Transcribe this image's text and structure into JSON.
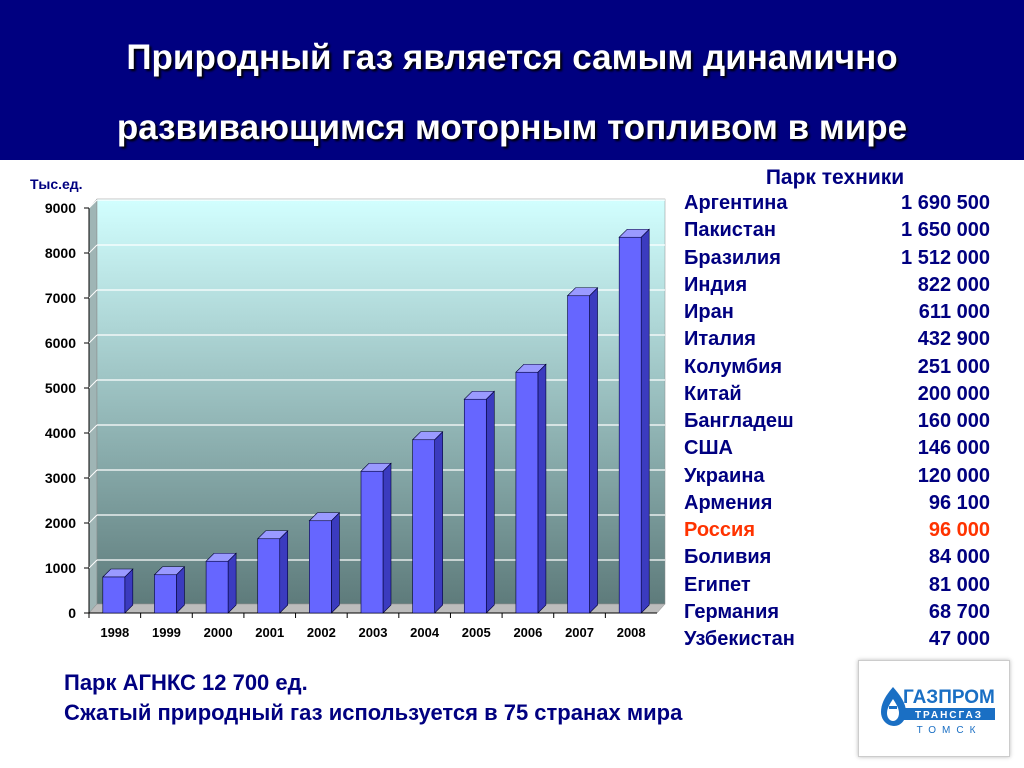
{
  "slide": {
    "title_line1": "Природный газ является самым динамично",
    "title_line2": "развивающимся моторным топливом в мире"
  },
  "chart_data": {
    "type": "bar",
    "ylabel": "Тыс.ед.",
    "categories": [
      "1998",
      "1999",
      "2000",
      "2001",
      "2002",
      "2003",
      "2004",
      "2005",
      "2006",
      "2007",
      "2008"
    ],
    "values": [
      800,
      850,
      1150,
      1650,
      2050,
      3150,
      3850,
      4750,
      5350,
      7050,
      8350
    ],
    "ylim": [
      0,
      9000
    ],
    "yticks": [
      "0",
      "1000",
      "2000",
      "3000",
      "4000",
      "5000",
      "6000",
      "7000",
      "8000",
      "9000"
    ],
    "grid": true,
    "colors": {
      "bar": "#6666ff",
      "bar_side": "#3b3bbf",
      "bar_top": "#9a9aff"
    }
  },
  "fleet": {
    "title": "Парк техники",
    "rows": [
      {
        "country": "Аргентина",
        "count": "1 690 500"
      },
      {
        "country": "Пакистан",
        "count": "1 650 000"
      },
      {
        "country": "Бразилия",
        "count": "1 512 000"
      },
      {
        "country": "Индия",
        "count": "822 000"
      },
      {
        "country": "Иран",
        "count": "611 000"
      },
      {
        "country": "Италия",
        "count": "432 900"
      },
      {
        "country": "Колумбия",
        "count": "251 000"
      },
      {
        "country": "Китай",
        "count": "200 000"
      },
      {
        "country": "Бангладеш",
        "count": "160 000"
      },
      {
        "country": "США",
        "count": "146 000"
      },
      {
        "country": "Украина",
        "count": "120 000"
      },
      {
        "country": "Армения",
        "count": "96 100"
      },
      {
        "country": "Россия",
        "count": "96 000",
        "highlight": true
      },
      {
        "country": "Боливия",
        "count": "84 000"
      },
      {
        "country": "Египет",
        "count": "81 000"
      },
      {
        "country": "Германия",
        "count": "68 700"
      },
      {
        "country": "Узбекистан",
        "count": "47 000"
      }
    ]
  },
  "footer": {
    "line1": "Парк АГНКС 12 700 ед.",
    "line2": "Сжатый природный газ используется в 75 странах мира"
  },
  "logo": {
    "text1": "ГАЗПРОМ",
    "text2": "ТРАНСГАЗ",
    "text3": "ТОМСК",
    "color": "#1a6fc4"
  },
  "colors": {
    "header_bg": "#000080",
    "text_main": "#000080",
    "highlight": "#ff3300"
  }
}
